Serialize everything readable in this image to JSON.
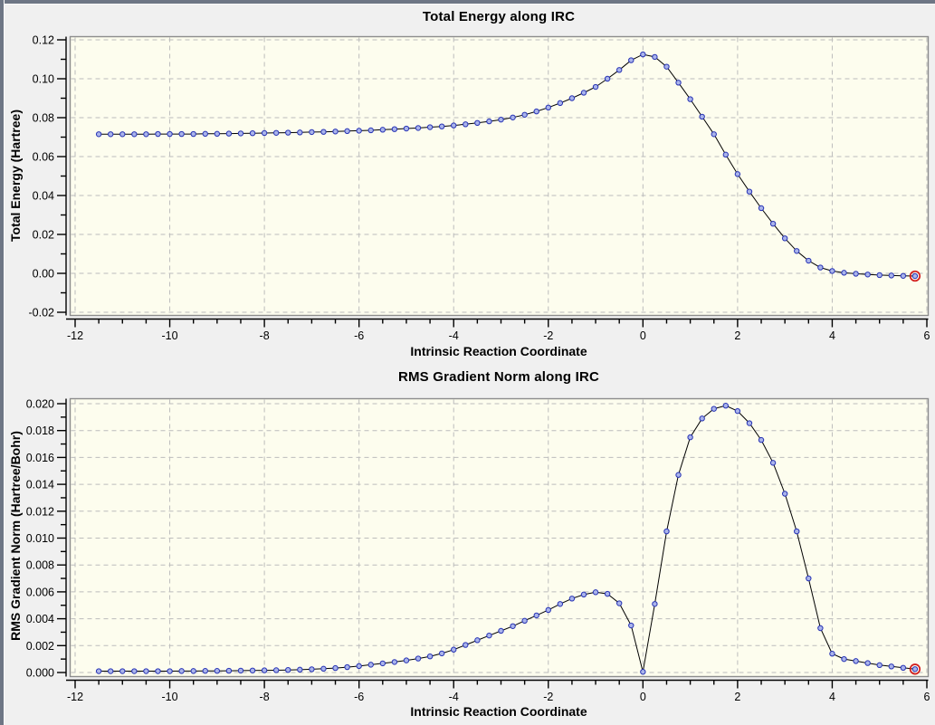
{
  "window": {
    "background_color": "#f0f0f0",
    "chrome_color": "#6e7685"
  },
  "style": {
    "plot_bg": "#fdfdee",
    "frame": "#8c8c8c",
    "grid": "#bcbcbc",
    "axis": "#000000",
    "text": "#000000",
    "line": "#000000",
    "marker_fill": "#aab4ea",
    "marker_edge": "#2733b5",
    "highlight_ring": "#d21a1a"
  },
  "chart_data": [
    {
      "type": "line",
      "title": "Total Energy along IRC",
      "xlabel": "Intrinsic Reaction Coordinate",
      "ylabel": "Total Energy (Hartree)",
      "xlim": [
        -12,
        6
      ],
      "ylim": [
        -0.02,
        0.12
      ],
      "grid": true,
      "xticks": [
        -12,
        -10,
        -8,
        -6,
        -4,
        -2,
        0,
        2,
        4,
        6
      ],
      "xtick_labels": [
        "-12",
        "-10",
        "-8",
        "-6",
        "-4",
        "-2",
        "0",
        "2",
        "4",
        "6"
      ],
      "yticks": [
        0.12,
        0.1,
        0.08,
        0.06,
        0.04,
        0.02,
        0.0,
        -0.02
      ],
      "ytick_labels": [
        "0.12",
        "0.10",
        "0.08",
        "0.06",
        "0.04",
        "0.02",
        "0.00",
        "-0.02"
      ],
      "highlight_last_point": true,
      "series": [
        {
          "name": "Total Energy",
          "x": [
            -11.5,
            -11.25,
            -11.0,
            -10.75,
            -10.5,
            -10.25,
            -10.0,
            -9.75,
            -9.5,
            -9.25,
            -9.0,
            -8.75,
            -8.5,
            -8.25,
            -8.0,
            -7.75,
            -7.5,
            -7.25,
            -7.0,
            -6.75,
            -6.5,
            -6.25,
            -6.0,
            -5.75,
            -5.5,
            -5.25,
            -5.0,
            -4.75,
            -4.5,
            -4.25,
            -4.0,
            -3.75,
            -3.5,
            -3.25,
            -3.0,
            -2.75,
            -2.5,
            -2.25,
            -2.0,
            -1.75,
            -1.5,
            -1.25,
            -1.0,
            -0.75,
            -0.5,
            -0.25,
            0.0,
            0.25,
            0.5,
            0.75,
            1.0,
            1.25,
            1.5,
            1.75,
            2.0,
            2.25,
            2.5,
            2.75,
            3.0,
            3.25,
            3.5,
            3.75,
            4.0,
            4.25,
            4.5,
            4.75,
            5.0,
            5.25,
            5.5,
            5.75
          ],
          "y": [
            0.0715,
            0.0715,
            0.0715,
            0.0715,
            0.0715,
            0.0716,
            0.0716,
            0.0716,
            0.0716,
            0.0717,
            0.0717,
            0.0718,
            0.0719,
            0.072,
            0.0721,
            0.0722,
            0.0723,
            0.0724,
            0.0726,
            0.0727,
            0.0729,
            0.0731,
            0.0733,
            0.0735,
            0.0738,
            0.0741,
            0.0744,
            0.0747,
            0.0751,
            0.0755,
            0.076,
            0.0766,
            0.0773,
            0.0781,
            0.079,
            0.0801,
            0.0815,
            0.0832,
            0.0852,
            0.0875,
            0.09,
            0.0928,
            0.0958,
            0.1,
            0.1045,
            0.1095,
            0.1125,
            0.1112,
            0.1062,
            0.098,
            0.0895,
            0.0805,
            0.0715,
            0.061,
            0.051,
            0.042,
            0.0335,
            0.0255,
            0.018,
            0.0115,
            0.0065,
            0.003,
            0.0012,
            0.0003,
            -0.0002,
            -0.0006,
            -0.0009,
            -0.0011,
            -0.0013,
            -0.0014
          ]
        }
      ]
    },
    {
      "type": "line",
      "title": "RMS Gradient Norm along IRC",
      "xlabel": "Intrinsic Reaction Coordinate",
      "ylabel": "RMS Gradient Norm (Hartree/Bohr)",
      "xlim": [
        -12,
        6
      ],
      "ylim": [
        0.0,
        0.02
      ],
      "grid": true,
      "xticks": [
        -12,
        -10,
        -8,
        -6,
        -4,
        -2,
        0,
        2,
        4,
        6
      ],
      "xtick_labels": [
        "-12",
        "-10",
        "-8",
        "-6",
        "-4",
        "-2",
        "0",
        "2",
        "4",
        "6"
      ],
      "yticks": [
        0.02,
        0.018,
        0.016,
        0.014,
        0.012,
        0.01,
        0.008,
        0.006,
        0.004,
        0.002,
        0.0
      ],
      "ytick_labels": [
        "0.020",
        "0.018",
        "0.016",
        "0.014",
        "0.012",
        "0.010",
        "0.008",
        "0.006",
        "0.004",
        "0.002",
        "0.000"
      ],
      "highlight_last_point": true,
      "series": [
        {
          "name": "RMS Gradient Norm",
          "x": [
            -11.5,
            -11.25,
            -11.0,
            -10.75,
            -10.5,
            -10.25,
            -10.0,
            -9.75,
            -9.5,
            -9.25,
            -9.0,
            -8.75,
            -8.5,
            -8.25,
            -8.0,
            -7.75,
            -7.5,
            -7.25,
            -7.0,
            -6.75,
            -6.5,
            -6.25,
            -6.0,
            -5.75,
            -5.5,
            -5.25,
            -5.0,
            -4.75,
            -4.5,
            -4.25,
            -4.0,
            -3.75,
            -3.5,
            -3.25,
            -3.0,
            -2.75,
            -2.5,
            -2.25,
            -2.0,
            -1.75,
            -1.5,
            -1.25,
            -1.0,
            -0.75,
            -0.5,
            -0.25,
            0.0,
            0.25,
            0.5,
            0.75,
            1.0,
            1.25,
            1.5,
            1.75,
            2.0,
            2.25,
            2.5,
            2.75,
            3.0,
            3.25,
            3.5,
            3.75,
            4.0,
            4.25,
            4.5,
            4.75,
            5.0,
            5.25,
            5.5,
            5.75
          ],
          "y": [
            0.0001,
            0.0001,
            0.0001,
            0.0001,
            0.0001,
            0.0001,
            0.0001,
            0.00011,
            0.00011,
            0.00012,
            0.00012,
            0.00013,
            0.00014,
            0.00015,
            0.00016,
            0.00017,
            0.00019,
            0.00021,
            0.00024,
            0.00028,
            0.00033,
            0.0004,
            0.00048,
            0.00058,
            0.00068,
            0.00078,
            0.0009,
            0.00104,
            0.0012,
            0.00142,
            0.0017,
            0.00205,
            0.0024,
            0.00275,
            0.0031,
            0.00345,
            0.00385,
            0.00425,
            0.00465,
            0.0051,
            0.0055,
            0.0058,
            0.00597,
            0.00585,
            0.00515,
            0.0035,
            5e-05,
            0.0051,
            0.0105,
            0.0147,
            0.0175,
            0.0189,
            0.01962,
            0.01985,
            0.01945,
            0.01855,
            0.0173,
            0.0156,
            0.0133,
            0.0105,
            0.007,
            0.0033,
            0.0014,
            0.001,
            0.00085,
            0.0007,
            0.00055,
            0.00045,
            0.00035,
            0.00025
          ]
        }
      ]
    }
  ]
}
